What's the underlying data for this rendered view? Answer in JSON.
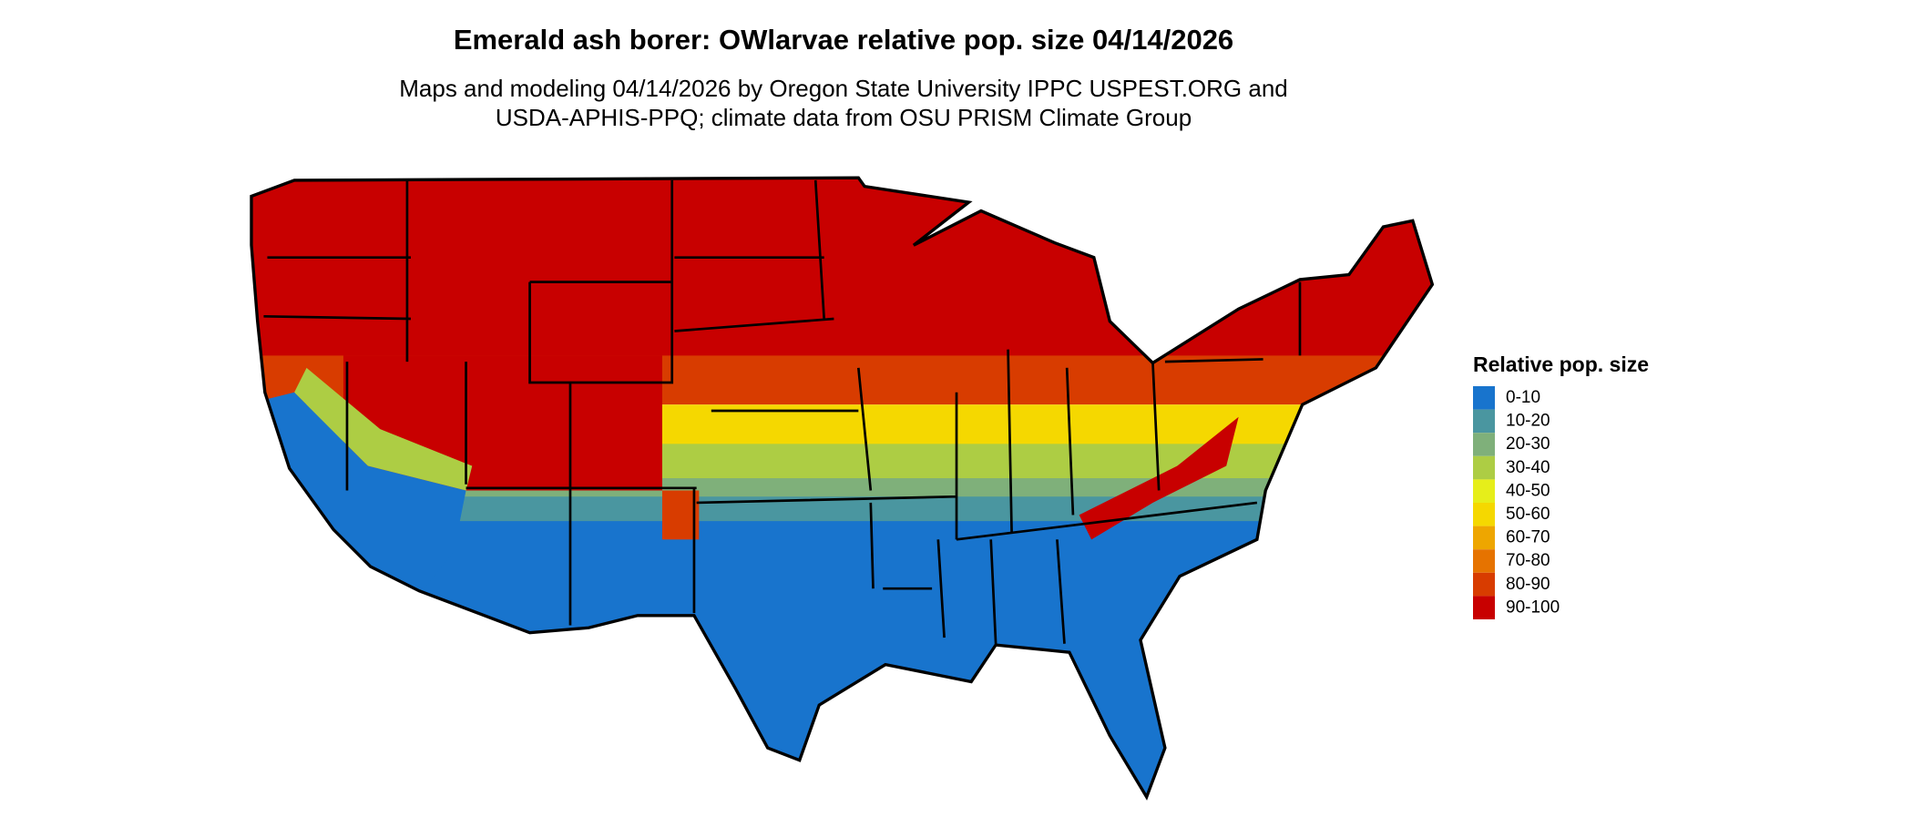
{
  "header": {
    "title": "Emerald ash borer: OWlarvae relative pop. size 04/14/2026",
    "subtitle_lines": [
      "Maps and modeling 04/14/2026 by Oregon State University IPPC USPEST.ORG and",
      "USDA-APHIS-PPQ; climate data from OSU PRISM Climate Group"
    ]
  },
  "legend": {
    "title": "Relative pop. size",
    "items": [
      {
        "label": "0-10",
        "color": "#1874cd"
      },
      {
        "label": "10-20",
        "color": "#4a96a0"
      },
      {
        "label": "20-30",
        "color": "#7fb07a"
      },
      {
        "label": "30-40",
        "color": "#adcd44"
      },
      {
        "label": "40-50",
        "color": "#e6ee1a"
      },
      {
        "label": "50-60",
        "color": "#f5d800"
      },
      {
        "label": "60-70",
        "color": "#eea600"
      },
      {
        "label": "70-80",
        "color": "#e67300"
      },
      {
        "label": "80-90",
        "color": "#d83c00"
      },
      {
        "label": "90-100",
        "color": "#c80000"
      }
    ]
  }
}
